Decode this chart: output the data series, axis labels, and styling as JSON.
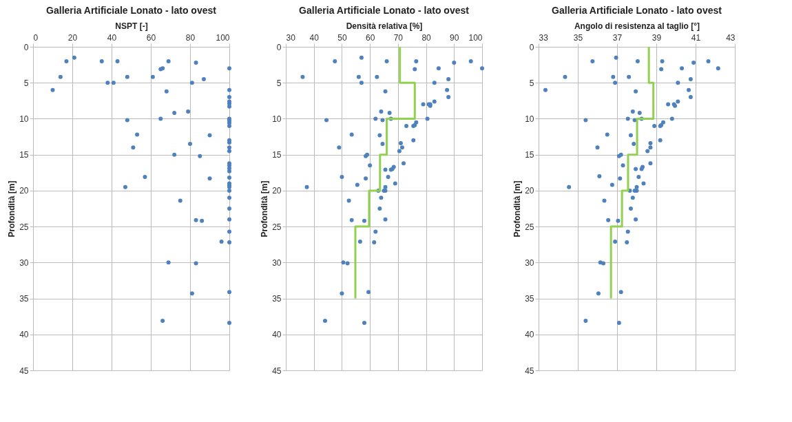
{
  "chart_data": [
    {
      "type": "scatter",
      "title": "Galleria Artificiale Lonato - lato ovest",
      "xlabel": "NSPT [-]",
      "ylabel": "Profondità [m]",
      "xlim": [
        0,
        100
      ],
      "xticks": [
        0,
        20,
        40,
        60,
        80,
        100
      ],
      "ylim": [
        45,
        0
      ],
      "yticks": [
        0,
        5,
        10,
        15,
        20,
        25,
        30,
        35,
        40,
        45
      ],
      "grid": true,
      "marker": "circle",
      "series": [
        {
          "color": "#4f81bd",
          "x": [
            17,
            21,
            35,
            43,
            14,
            10,
            38,
            41,
            48,
            61,
            65,
            66,
            69,
            83,
            100,
            87,
            81,
            68,
            100,
            100,
            100,
            100,
            100,
            72,
            79,
            65,
            48,
            100,
            100,
            100,
            100,
            53,
            90,
            51,
            80,
            100,
            100,
            100,
            100,
            72,
            85,
            100,
            100,
            100,
            100,
            57,
            90,
            100,
            47,
            100,
            100,
            100,
            100,
            100,
            75,
            100,
            83,
            86,
            100,
            100,
            96,
            100,
            69,
            83,
            81,
            100,
            66,
            100
          ],
          "values": [
            2.0,
            1.5,
            2.0,
            2.0,
            4.2,
            6.0,
            5.0,
            5.0,
            4.2,
            4.2,
            3.1,
            3.0,
            2.0,
            2.2,
            3.0,
            4.5,
            5.0,
            6.2,
            6.0,
            7.0,
            7.6,
            7.9,
            8.3,
            9.2,
            9.0,
            10.0,
            10.2,
            10.0,
            10.3,
            10.6,
            11.0,
            12.2,
            12.3,
            14.0,
            13.5,
            13.0,
            13.3,
            14.0,
            14.5,
            15.0,
            15.2,
            16.2,
            16.5,
            16.9,
            17.3,
            18.1,
            18.3,
            18.2,
            19.5,
            19.0,
            19.3,
            19.5,
            20.0,
            21.0,
            21.4,
            22.5,
            24.1,
            24.2,
            24.0,
            25.7,
            27.1,
            27.2,
            30.0,
            30.1,
            34.3,
            34.1,
            38.1,
            38.4
          ]
        }
      ]
    },
    {
      "type": "scatter",
      "title": "Galleria Artificiale Lonato - lato ovest",
      "xlabel": "Densità relativa [%]",
      "ylabel": "Profondità [m]",
      "xlim": [
        30,
        100
      ],
      "xticks": [
        30,
        40,
        50,
        60,
        70,
        80,
        90,
        100
      ],
      "ylim": [
        45,
        0
      ],
      "yticks": [
        0,
        5,
        10,
        15,
        20,
        25,
        30,
        35,
        40,
        45
      ],
      "grid": true,
      "marker": "circle",
      "series": [
        {
          "color": "#4f81bd",
          "x": [
            47.5,
            57,
            66,
            76.5,
            96,
            90,
            100,
            84.5,
            76,
            36,
            56,
            62.5,
            57,
            83,
            88,
            65.5,
            87.5,
            88,
            83,
            79,
            81,
            81.5,
            81.5,
            64,
            67,
            62,
            64.5,
            67.5,
            80.5,
            44.5,
            76.5,
            73,
            75.5,
            76,
            53.5,
            63.5,
            64.5,
            71,
            75.5,
            71.5,
            70.5,
            49,
            59,
            58.5,
            72,
            60,
            65.5,
            67.5,
            68.5,
            68,
            50,
            58.5,
            66.5,
            37.5,
            55.5,
            69,
            65.5,
            63,
            65,
            65.5,
            64,
            52.5,
            63.5,
            53.5,
            58,
            65.5,
            62,
            56.5,
            61.5,
            50.5,
            52,
            50,
            59.5,
            44,
            58
          ],
          "values": [
            2.0,
            1.5,
            2.0,
            2.0,
            2.0,
            2.2,
            3.0,
            3.0,
            3.1,
            4.2,
            4.2,
            4.2,
            5.0,
            5.0,
            4.5,
            6.2,
            6.0,
            7.0,
            7.6,
            8.0,
            8.0,
            8.2,
            8.0,
            9.0,
            9.2,
            10.0,
            10.2,
            10.0,
            10.0,
            10.2,
            10.5,
            11.0,
            11.0,
            10.9,
            12.2,
            12.3,
            13.5,
            13.4,
            13.0,
            14.0,
            14.5,
            14.0,
            15.0,
            15.2,
            16.2,
            16.5,
            17.1,
            17.1,
            16.7,
            17.0,
            18.1,
            18.3,
            18.1,
            19.5,
            19.2,
            19.0,
            19.5,
            20.0,
            20.0,
            20.0,
            21.0,
            21.4,
            22.5,
            24.1,
            24.2,
            24.0,
            25.7,
            27.1,
            27.2,
            30.0,
            30.1,
            34.3,
            34.1,
            38.1,
            38.4
          ]
        },
        {
          "type": "line",
          "color": "#92d050",
          "marker": "none",
          "x": [
            70.7,
            70.7,
            76,
            76,
            66,
            66,
            63.6,
            63.6,
            59.7,
            59.7,
            54.8,
            54.8
          ],
          "values": [
            0,
            5,
            5,
            10,
            10,
            15,
            15,
            20,
            20,
            25,
            25,
            35
          ]
        }
      ]
    },
    {
      "type": "scatter",
      "title": "Galleria Artificiale Lonato - lato ovest",
      "xlabel": "Angolo di resistenza al taglio [°]",
      "ylabel": "Profondità [m]",
      "xlim": [
        33,
        43
      ],
      "xticks": [
        33,
        35,
        37,
        39,
        41,
        43
      ],
      "ylim": [
        45,
        0
      ],
      "yticks": [
        0,
        5,
        10,
        15,
        20,
        25,
        30,
        35,
        40,
        45
      ],
      "grid": true,
      "marker": "circle",
      "series": [
        {
          "color": "#4f81bd",
          "x": [
            35.75,
            36.95,
            38.05,
            39.3,
            41.65,
            40.9,
            42.15,
            40.3,
            39.25,
            34.35,
            36.8,
            37.6,
            36.9,
            40.1,
            40.75,
            37.95,
            40.65,
            40.75,
            40.1,
            39.6,
            39.9,
            39.95,
            33.35,
            37.8,
            38.15,
            37.55,
            37.9,
            38.25,
            39.8,
            35.4,
            39.35,
            38.9,
            39.2,
            39.25,
            36.5,
            37.7,
            37.85,
            38.7,
            39.2,
            38.7,
            38.55,
            36.0,
            37.2,
            37.1,
            38.7,
            37.3,
            37.95,
            38.25,
            38.3,
            36.1,
            37.15,
            38.1,
            34.55,
            36.75,
            38.35,
            38.0,
            37.65,
            37.9,
            38.0,
            37.8,
            36.35,
            37.7,
            36.55,
            37.05,
            37.95,
            37.55,
            36.9,
            37.5,
            36.15,
            36.3,
            36.05,
            37.2,
            35.4,
            37.1
          ],
          "values": [
            2.0,
            1.5,
            2.0,
            2.0,
            2.0,
            2.2,
            3.0,
            3.0,
            3.1,
            4.2,
            4.2,
            4.2,
            5.0,
            5.0,
            4.5,
            6.2,
            6.0,
            7.0,
            7.6,
            8.0,
            8.0,
            8.2,
            6.0,
            9.0,
            9.2,
            10.0,
            10.2,
            10.0,
            10.0,
            10.2,
            10.5,
            11.0,
            11.0,
            10.9,
            12.2,
            12.3,
            13.5,
            13.4,
            13.0,
            14.0,
            14.5,
            14.0,
            15.0,
            15.2,
            16.2,
            16.5,
            17.0,
            17.0,
            16.7,
            18.0,
            18.3,
            18.1,
            19.5,
            19.2,
            19.0,
            19.5,
            20.0,
            20.0,
            20.0,
            21.0,
            21.4,
            22.5,
            24.1,
            24.2,
            24.0,
            25.7,
            27.1,
            27.2,
            30.0,
            30.1,
            34.3,
            34.1,
            38.1,
            38.4
          ]
        },
        {
          "type": "line",
          "color": "#92d050",
          "marker": "none",
          "x": [
            38.62,
            38.62,
            38.85,
            38.85,
            38.02,
            38.02,
            37.56,
            37.56,
            37.25,
            37.25,
            36.69,
            36.69
          ],
          "values": [
            0,
            5,
            5,
            10,
            10,
            15,
            15,
            20,
            20,
            25,
            25,
            35
          ]
        }
      ]
    }
  ]
}
